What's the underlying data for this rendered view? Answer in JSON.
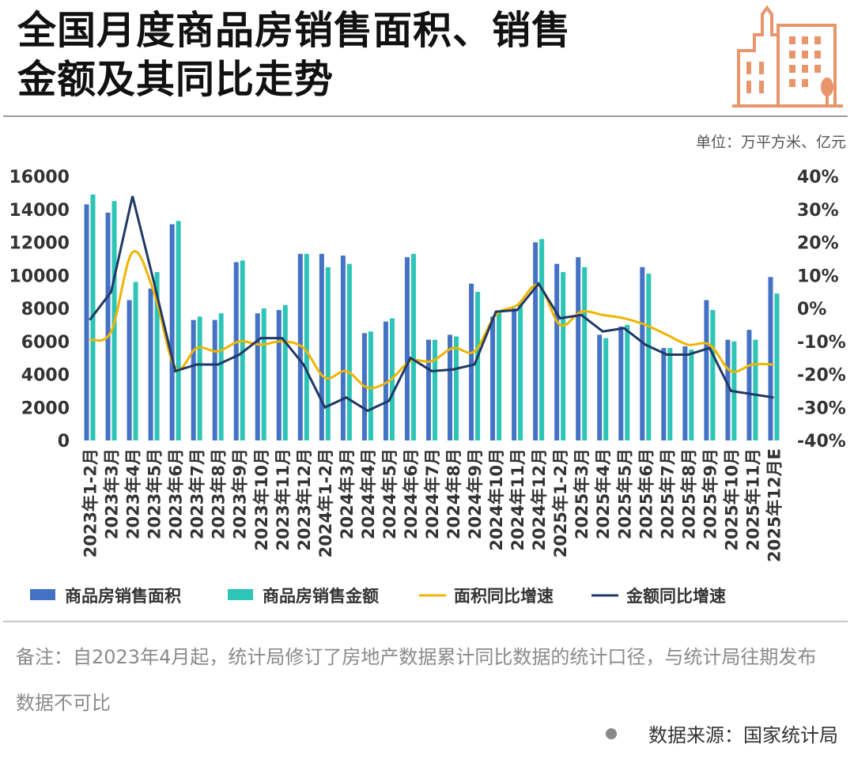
{
  "header": {
    "title_line1": "全国月度商品房销售面积、销售",
    "title_line2": "金额及其同比走势",
    "unit": "单位：万平方米、亿元"
  },
  "footer": {
    "note": "备注：自2023年4月起，统计局修订了房地产数据累计同比数据的统计口径，与统计局往期发布数据不可比",
    "source": "数据来源：国家统计局"
  },
  "colors": {
    "area_bar": "#4472c4",
    "amount_bar": "#2ec4b6",
    "area_yoy_line": "#f0b400",
    "amount_yoy_line": "#203864",
    "logo": "#e8956b"
  },
  "chart_data": {
    "type": "bar",
    "categories": [
      "2023年1-2月",
      "2023年3月",
      "2023年4月",
      "2023年5月",
      "2023年6月",
      "2023年7月",
      "2023年8月",
      "2023年9月",
      "2023年10月",
      "2023年11月",
      "2023年12月",
      "2024年1-2月",
      "2024年3月",
      "2024年4月",
      "2024年5月",
      "2024年6月",
      "2024年7月",
      "2024年8月",
      "2024年9月",
      "2024年10月",
      "2024年11月",
      "2024年12月",
      "2025年1-2月",
      "2025年3月",
      "2025年4月",
      "2025年5月",
      "2025年6月",
      "2025年7月",
      "2025年8月",
      "2025年9月",
      "2025年10月",
      "2025年11月",
      "2025年12月E"
    ],
    "series": [
      {
        "name": "商品房销售面积",
        "type": "bar",
        "axis": "left",
        "values": [
          14300,
          13800,
          8500,
          9200,
          13100,
          7300,
          7300,
          10800,
          7700,
          7900,
          11300,
          11300,
          11200,
          6500,
          7200,
          11100,
          6100,
          6400,
          9500,
          7500,
          8000,
          12000,
          10700,
          11100,
          6400,
          6900,
          10500,
          5600,
          5700,
          8500,
          6100,
          6700,
          9900
        ]
      },
      {
        "name": "商品房销售金额",
        "type": "bar",
        "axis": "left",
        "values": [
          14900,
          14500,
          9600,
          10200,
          13300,
          7500,
          7700,
          10900,
          8000,
          8200,
          11300,
          10500,
          10700,
          6600,
          7400,
          11300,
          6100,
          6300,
          9000,
          7800,
          8300,
          12200,
          10200,
          10500,
          6200,
          7000,
          10100,
          5600,
          5500,
          7900,
          6000,
          6100,
          8900
        ]
      },
      {
        "name": "面积同比增速",
        "type": "line",
        "axis": "right",
        "values": [
          -9.5,
          -7,
          17,
          5,
          -18,
          -12,
          -13,
          -10,
          -11,
          -10,
          -12,
          -21,
          -19,
          -24,
          -22,
          -16,
          -16,
          -12,
          -13,
          -2,
          1,
          7,
          -5,
          -1,
          -2,
          -3,
          -5,
          -8,
          -11,
          -11,
          -19,
          -17,
          -17
        ]
      },
      {
        "name": "金额同比增速",
        "type": "line",
        "axis": "right",
        "values": [
          -3.5,
          5,
          34,
          8,
          -19,
          -17,
          -17,
          -14,
          -9,
          -9,
          -17,
          -30,
          -27,
          -31,
          -28,
          -15,
          -19,
          -18.5,
          -17,
          -1,
          -0.5,
          7.5,
          -3,
          -2,
          -7,
          -6,
          -11,
          -14,
          -14,
          -12,
          -25,
          -26,
          -27
        ]
      }
    ],
    "y_left": {
      "min": 0,
      "max": 16000,
      "step": 2000,
      "ticks": [
        "0",
        "2000",
        "4000",
        "6000",
        "8000",
        "10000",
        "12000",
        "14000",
        "16000"
      ]
    },
    "y_right": {
      "min": -40,
      "max": 40,
      "step": 10,
      "ticks": [
        "-40%",
        "-30%",
        "-20%",
        "-10%",
        "0%",
        "10%",
        "20%",
        "30%",
        "40%"
      ]
    },
    "grid": false,
    "legend": "bottom"
  }
}
